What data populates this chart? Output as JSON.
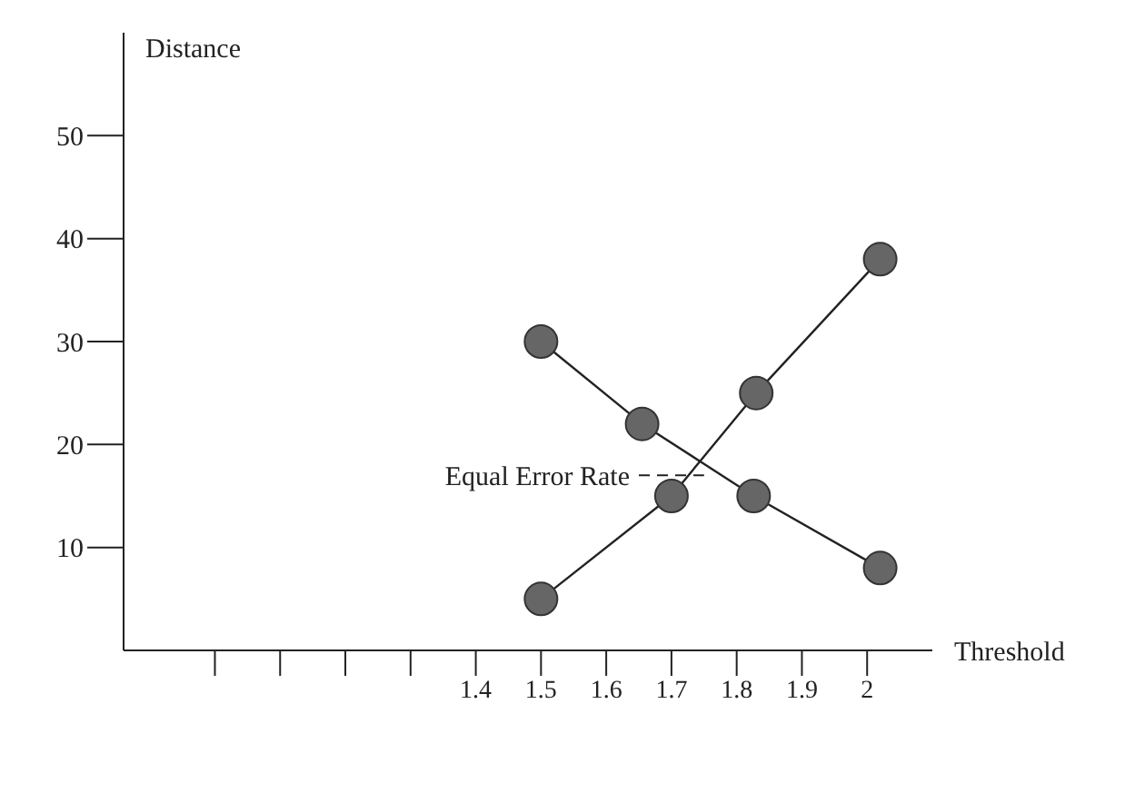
{
  "chart_data": {
    "type": "line",
    "xlabel": "Threshold",
    "ylabel": "Distance",
    "xlim": [
      0.86,
      2.1
    ],
    "ylim": [
      0,
      60
    ],
    "xticks": [
      {
        "value": 1.0,
        "label": null
      },
      {
        "value": 1.1,
        "label": null
      },
      {
        "value": 1.2,
        "label": null
      },
      {
        "value": 1.3,
        "label": null
      },
      1.4,
      1.5,
      1.6,
      1.7,
      1.8,
      1.9,
      2
    ],
    "yticks": [
      10,
      20,
      30,
      40,
      50
    ],
    "series": [
      {
        "color": "#666666",
        "x": [
          1.5,
          1.655,
          1.826,
          2.02
        ],
        "values": [
          30,
          22,
          15,
          8
        ]
      },
      {
        "color": "#666666",
        "x": [
          1.5,
          1.7,
          1.83,
          2.02
        ],
        "values": [
          5,
          15,
          25,
          38
        ]
      }
    ],
    "annotations": [
      {
        "text": "Equal Error Rate",
        "x": 1.75,
        "y": 17
      }
    ],
    "marker": "circle",
    "line_style": "solid",
    "grid": false,
    "legend": false
  }
}
